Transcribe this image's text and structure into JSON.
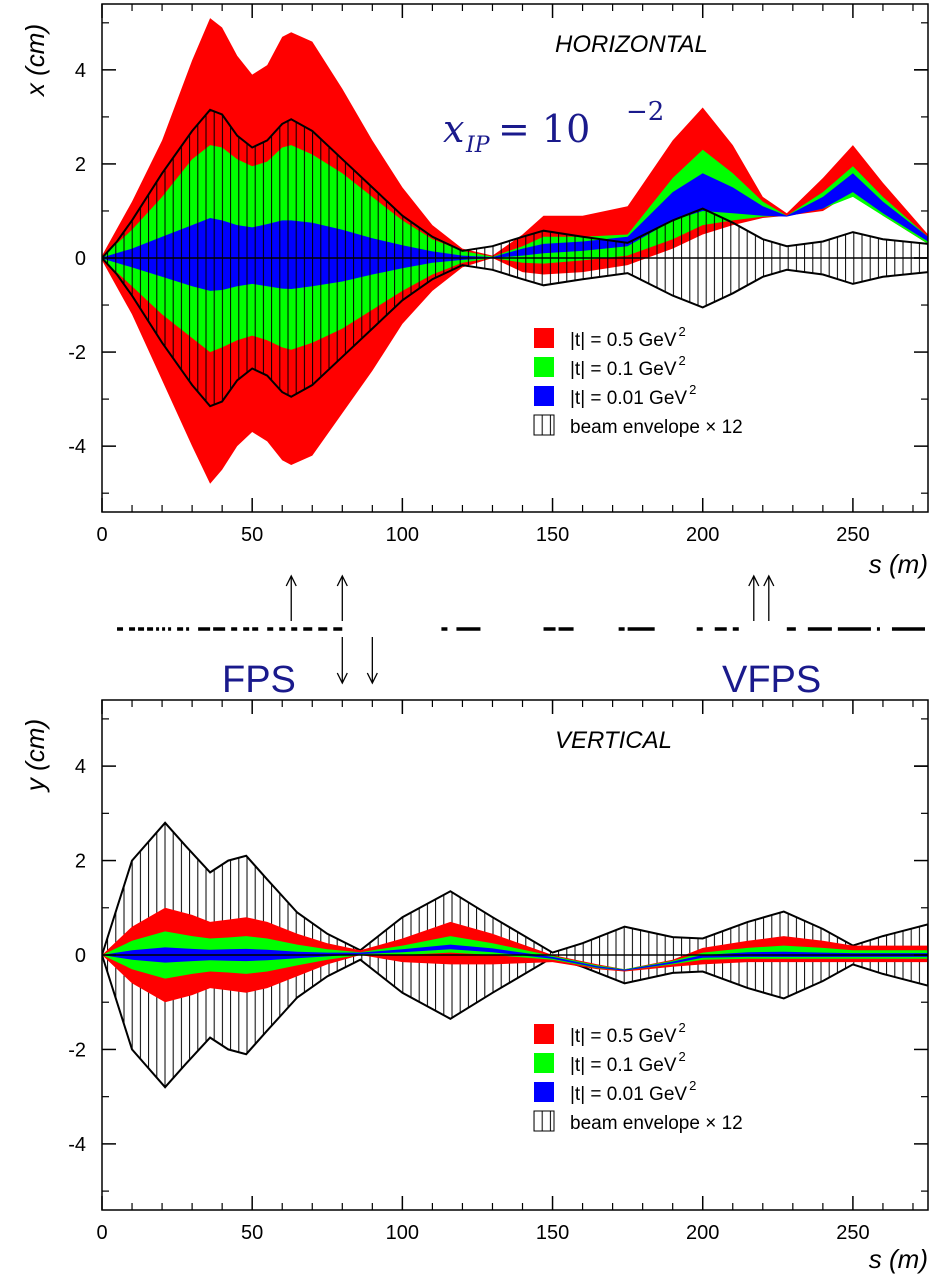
{
  "chart_data": [
    {
      "type": "area",
      "title": "HORIZONTAL",
      "xlabel": "s (m)",
      "ylabel": "x (cm)",
      "xlim": [
        0,
        275
      ],
      "ylim": [
        -5.4,
        5.4
      ],
      "xticks": [
        0,
        50,
        100,
        150,
        200,
        250
      ],
      "yticks": [
        -4,
        -2,
        0,
        2,
        4
      ],
      "x_tick_labels": [
        "0",
        "50",
        "100",
        "150",
        "200",
        "250"
      ],
      "y_tick_labels": [
        "-4",
        "-2",
        "0",
        "2",
        "4"
      ],
      "annotation": {
        "base": "x",
        "sub": "IP",
        "eq": "= 10",
        "exp": "−2"
      },
      "legend_position": "bottom-right",
      "legend": [
        {
          "label": "|t| = 0.5 GeV",
          "sup": "2",
          "color": "#ff0000"
        },
        {
          "label": "|t| = 0.1 GeV",
          "sup": "2",
          "color": "#00ff00"
        },
        {
          "label": "|t| = 0.01 GeV",
          "sup": "2",
          "color": "#0000ff"
        },
        {
          "label": "beam envelope × 12",
          "sup": "",
          "color": "hatch"
        }
      ],
      "series": [
        {
          "name": "|t| = 0.5 GeV2",
          "color": "#ff0000",
          "x": [
            0,
            10,
            20,
            30,
            36,
            40,
            45,
            50,
            55,
            60,
            63,
            70,
            80,
            90,
            100,
            110,
            120,
            130,
            140,
            147,
            160,
            175,
            190,
            200,
            210,
            220,
            228,
            240,
            250,
            260,
            275
          ],
          "upper": [
            0.05,
            1.2,
            2.5,
            4.2,
            5.1,
            4.9,
            4.3,
            3.9,
            4.1,
            4.7,
            4.8,
            4.6,
            3.6,
            2.5,
            1.5,
            0.7,
            0.2,
            0.05,
            0.5,
            0.9,
            0.9,
            1.1,
            2.5,
            3.2,
            2.4,
            1.3,
            0.95,
            1.7,
            2.4,
            1.6,
            0.5
          ],
          "lower": [
            -0.05,
            -1.2,
            -2.6,
            -4.0,
            -4.8,
            -4.5,
            -4.0,
            -3.7,
            -3.9,
            -4.3,
            -4.4,
            -4.2,
            -3.3,
            -2.4,
            -1.4,
            -0.7,
            -0.2,
            0.0,
            -0.3,
            -0.35,
            -0.3,
            -0.15,
            0.2,
            0.5,
            0.7,
            0.85,
            0.9,
            1.0,
            1.4,
            0.9,
            0.3
          ]
        },
        {
          "name": "|t| = 0.1 GeV2",
          "color": "#00ff00",
          "x": [
            0,
            10,
            20,
            30,
            36,
            40,
            45,
            50,
            55,
            60,
            63,
            70,
            80,
            90,
            100,
            110,
            120,
            130,
            140,
            147,
            160,
            175,
            190,
            200,
            210,
            220,
            228,
            240,
            250,
            260,
            275
          ],
          "upper": [
            0.02,
            0.6,
            1.3,
            2.1,
            2.4,
            2.35,
            2.1,
            1.95,
            2.05,
            2.35,
            2.4,
            2.2,
            1.8,
            1.3,
            0.8,
            0.4,
            0.15,
            0.03,
            0.25,
            0.45,
            0.45,
            0.5,
            1.7,
            2.3,
            1.8,
            1.2,
            0.9,
            1.4,
            1.95,
            1.3,
            0.45
          ],
          "lower": [
            -0.02,
            -0.6,
            -1.2,
            -1.7,
            -2.0,
            -1.9,
            -1.75,
            -1.65,
            -1.75,
            -1.9,
            -1.95,
            -1.8,
            -1.5,
            -1.1,
            -0.7,
            -0.35,
            -0.1,
            0.0,
            -0.1,
            -0.12,
            -0.05,
            0.05,
            0.4,
            0.7,
            0.8,
            0.88,
            0.9,
            1.05,
            1.3,
            0.9,
            0.3
          ]
        },
        {
          "name": "|t| = 0.01 GeV2",
          "color": "#0000ff",
          "x": [
            0,
            10,
            20,
            30,
            36,
            40,
            45,
            50,
            55,
            60,
            63,
            70,
            80,
            90,
            100,
            110,
            120,
            130,
            140,
            147,
            160,
            175,
            190,
            200,
            210,
            220,
            228,
            240,
            250,
            260,
            275
          ],
          "upper": [
            0.01,
            0.2,
            0.45,
            0.7,
            0.85,
            0.8,
            0.7,
            0.65,
            0.72,
            0.8,
            0.8,
            0.75,
            0.6,
            0.42,
            0.27,
            0.14,
            0.05,
            0.02,
            0.2,
            0.3,
            0.35,
            0.45,
            1.4,
            1.8,
            1.5,
            1.1,
            0.9,
            1.3,
            1.8,
            1.2,
            0.45
          ],
          "lower": [
            -0.01,
            -0.2,
            -0.4,
            -0.6,
            -0.7,
            -0.68,
            -0.6,
            -0.55,
            -0.6,
            -0.65,
            -0.66,
            -0.6,
            -0.5,
            -0.35,
            -0.22,
            -0.1,
            -0.04,
            0.0,
            0.05,
            0.1,
            0.15,
            0.25,
            0.8,
            1.0,
            0.95,
            0.9,
            0.88,
            1.05,
            1.4,
            0.95,
            0.35
          ]
        },
        {
          "name": "beam envelope × 12",
          "color": "hatch",
          "x": [
            0,
            5,
            10,
            20,
            30,
            36,
            40,
            45,
            50,
            55,
            60,
            63,
            70,
            80,
            90,
            100,
            110,
            120,
            130,
            140,
            147,
            160,
            175,
            190,
            200,
            210,
            220,
            228,
            240,
            250,
            260,
            275
          ],
          "upper": [
            0.0,
            0.35,
            0.8,
            1.8,
            2.7,
            3.15,
            3.05,
            2.6,
            2.35,
            2.5,
            2.85,
            2.95,
            2.7,
            2.1,
            1.5,
            0.9,
            0.45,
            0.15,
            0.25,
            0.45,
            0.58,
            0.45,
            0.32,
            0.8,
            1.05,
            0.75,
            0.4,
            0.25,
            0.35,
            0.55,
            0.4,
            0.3
          ]
        }
      ]
    },
    {
      "type": "area",
      "title": "VERTICAL",
      "xlabel": "s (m)",
      "ylabel": "y (cm)",
      "xlim": [
        0,
        275
      ],
      "ylim": [
        -5.4,
        5.4
      ],
      "xticks": [
        0,
        50,
        100,
        150,
        200,
        250
      ],
      "yticks": [
        -4,
        -2,
        0,
        2,
        4
      ],
      "x_tick_labels": [
        "0",
        "50",
        "100",
        "150",
        "200",
        "250"
      ],
      "y_tick_labels": [
        "-4",
        "-2",
        "0",
        "2",
        "4"
      ],
      "legend_position": "bottom-right",
      "legend": [
        {
          "label": "|t| = 0.5 GeV",
          "sup": "2",
          "color": "#ff0000"
        },
        {
          "label": "|t| = 0.1 GeV",
          "sup": "2",
          "color": "#00ff00"
        },
        {
          "label": "|t| = 0.01 GeV",
          "sup": "2",
          "color": "#0000ff"
        },
        {
          "label": "beam envelope × 12",
          "sup": "",
          "color": "hatch"
        }
      ],
      "series": [
        {
          "name": "|t| = 0.5 GeV2",
          "color": "#ff0000",
          "x": [
            0,
            10,
            21,
            30,
            36,
            42,
            48,
            55,
            65,
            75,
            86,
            100,
            116,
            130,
            150,
            165,
            174,
            190,
            200,
            215,
            227,
            240,
            250,
            260,
            275
          ],
          "upper": [
            0.0,
            0.6,
            1.0,
            0.85,
            0.7,
            0.75,
            0.8,
            0.7,
            0.45,
            0.25,
            0.1,
            0.35,
            0.7,
            0.45,
            0.0,
            -0.2,
            -0.3,
            -0.1,
            0.15,
            0.3,
            0.4,
            0.3,
            0.2,
            0.2,
            0.2
          ],
          "lower": [
            0.0,
            -0.6,
            -1.0,
            -0.85,
            -0.7,
            -0.75,
            -0.8,
            -0.7,
            -0.45,
            -0.2,
            0.0,
            -0.15,
            -0.2,
            -0.2,
            -0.15,
            -0.3,
            -0.35,
            -0.25,
            -0.2,
            -0.15,
            -0.15,
            -0.15,
            -0.15,
            -0.15,
            -0.15
          ]
        },
        {
          "name": "|t| = 0.1 GeV2",
          "color": "#00ff00",
          "x": [
            0,
            10,
            21,
            30,
            36,
            42,
            48,
            55,
            65,
            75,
            86,
            100,
            116,
            130,
            150,
            165,
            174,
            190,
            200,
            215,
            227,
            240,
            250,
            260,
            275
          ],
          "upper": [
            0.0,
            0.3,
            0.5,
            0.4,
            0.35,
            0.37,
            0.4,
            0.35,
            0.22,
            0.12,
            0.06,
            0.2,
            0.4,
            0.25,
            -0.02,
            -0.22,
            -0.3,
            -0.12,
            0.05,
            0.15,
            0.2,
            0.15,
            0.1,
            0.1,
            0.1
          ],
          "lower": [
            0.0,
            -0.3,
            -0.5,
            -0.4,
            -0.35,
            -0.37,
            -0.4,
            -0.35,
            -0.22,
            -0.1,
            0.0,
            0.0,
            0.05,
            0.0,
            -0.1,
            -0.28,
            -0.33,
            -0.2,
            -0.1,
            -0.08,
            -0.08,
            -0.08,
            -0.08,
            -0.08,
            -0.08
          ]
        },
        {
          "name": "|t| = 0.01 GeV2",
          "color": "#0000ff",
          "x": [
            0,
            10,
            21,
            30,
            36,
            42,
            48,
            55,
            65,
            75,
            86,
            100,
            116,
            130,
            150,
            165,
            174,
            190,
            200,
            215,
            227,
            240,
            250,
            260,
            275
          ],
          "upper": [
            0.0,
            0.1,
            0.16,
            0.13,
            0.11,
            0.12,
            0.13,
            0.11,
            0.07,
            0.05,
            0.05,
            0.12,
            0.22,
            0.14,
            -0.04,
            -0.24,
            -0.31,
            -0.14,
            0.0,
            0.06,
            0.07,
            0.05,
            0.04,
            0.04,
            0.04
          ],
          "lower": [
            0.0,
            -0.1,
            -0.16,
            -0.13,
            -0.11,
            -0.12,
            -0.13,
            -0.11,
            -0.07,
            -0.03,
            0.02,
            0.06,
            0.12,
            0.06,
            -0.08,
            -0.27,
            -0.33,
            -0.18,
            -0.06,
            -0.04,
            -0.04,
            -0.04,
            -0.04,
            -0.04,
            -0.04
          ]
        },
        {
          "name": "beam envelope × 12",
          "color": "hatch",
          "x": [
            0,
            5,
            10,
            21,
            28,
            36,
            42,
            48,
            55,
            65,
            75,
            86,
            100,
            116,
            130,
            150,
            160,
            174,
            190,
            200,
            215,
            227,
            240,
            250,
            260,
            275
          ],
          "upper": [
            0.0,
            1.0,
            2.0,
            2.8,
            2.3,
            1.75,
            2.0,
            2.1,
            1.6,
            0.9,
            0.45,
            0.1,
            0.8,
            1.35,
            0.8,
            0.05,
            0.25,
            0.6,
            0.38,
            0.35,
            0.7,
            0.92,
            0.55,
            0.2,
            0.4,
            0.65
          ]
        }
      ]
    }
  ],
  "detectors": {
    "fps_label": "FPS",
    "vfps_label": "VFPS",
    "fps_up_arrows_s": [
      63,
      80
    ],
    "fps_down_arrows_s": [
      80,
      90
    ],
    "vfps_up_arrows_s": [
      217,
      222
    ],
    "beamline_dashes": [
      [
        5,
        7
      ],
      [
        9,
        11
      ],
      [
        12,
        14
      ],
      [
        15,
        17
      ],
      [
        18,
        19
      ],
      [
        20,
        21
      ],
      [
        22,
        23
      ],
      [
        25,
        27
      ],
      [
        28,
        29
      ],
      [
        32,
        36
      ],
      [
        37,
        41
      ],
      [
        43,
        45
      ],
      [
        47,
        49
      ],
      [
        50,
        52
      ],
      [
        55,
        57
      ],
      [
        59,
        61
      ],
      [
        63,
        65
      ],
      [
        67,
        70
      ],
      [
        72,
        75
      ],
      [
        77,
        80
      ],
      [
        113,
        115
      ],
      [
        118,
        126
      ],
      [
        147,
        151
      ],
      [
        152,
        157
      ],
      [
        172,
        174
      ],
      [
        175,
        184
      ],
      [
        198,
        200
      ],
      [
        204,
        208
      ],
      [
        210,
        212
      ],
      [
        228,
        231
      ],
      [
        235,
        243
      ],
      [
        245,
        256
      ],
      [
        258,
        259
      ],
      [
        263,
        274
      ]
    ]
  }
}
